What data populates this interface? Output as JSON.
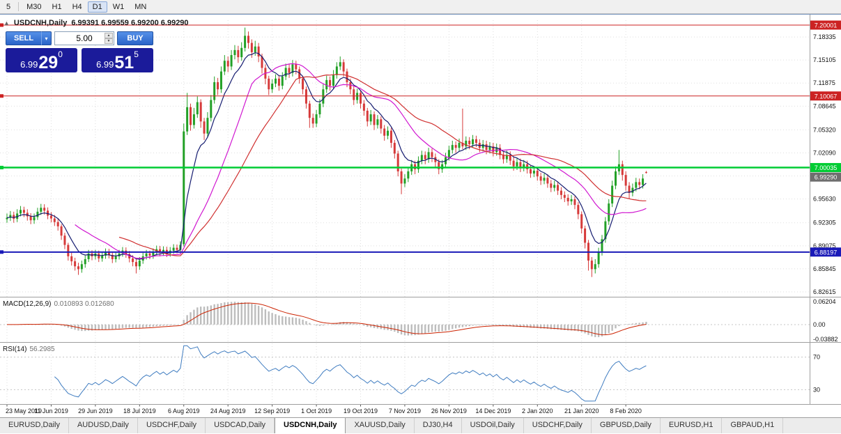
{
  "toolbar": {
    "timeframes": [
      "5",
      "M30",
      "H1",
      "H4",
      "D1",
      "W1",
      "MN"
    ],
    "active": "D1"
  },
  "chart_header": {
    "symbol": "USDCNH,Daily",
    "ohlc": "6.99391 6.99559 6.99200 6.99290"
  },
  "trade_panel": {
    "sell_label": "SELL",
    "buy_label": "BUY",
    "volume": "5.00",
    "sell_price": {
      "small": "6.99",
      "big": "29",
      "sup": "0"
    },
    "buy_price": {
      "small": "6.99",
      "big": "51",
      "sup": "5"
    }
  },
  "price_axis": {
    "labels": [
      "7.18335",
      "7.15105",
      "7.11875",
      "7.08645",
      "7.05320",
      "7.02090",
      "6.98860",
      "6.95630",
      "6.92305",
      "6.89075",
      "6.85845",
      "6.82615"
    ]
  },
  "hlines": [
    {
      "value": 7.20001,
      "label": "7.20001",
      "color": "#cc2222",
      "width": 1
    },
    {
      "value": 7.10067,
      "label": "7.10067",
      "color": "#cc2222",
      "width": 1
    },
    {
      "value": 7.00035,
      "label": "7.00035",
      "color": "#00cc33",
      "width": 2.5
    },
    {
      "value": 6.88197,
      "label": "6.88197",
      "color": "#1a1ab8",
      "width": 2
    }
  ],
  "current_price": {
    "value": 6.9929,
    "label": "6.99290",
    "color": "#6e6e6e"
  },
  "indicators": {
    "macd": {
      "title": "MACD(12,26,9)",
      "values": "0.010893 0.012680",
      "axis": [
        "0.06204",
        "0.00",
        "-0.03882"
      ],
      "histogram_color": "#bdbdbd",
      "signal_color": "#cc2200"
    },
    "rsi": {
      "title": "RSI(14)",
      "value": "56.2985",
      "levels": [
        70,
        30
      ],
      "color": "#3f7cc0"
    }
  },
  "date_axis": {
    "labels": [
      "23 May 2019",
      "11 Jun 2019",
      "29 Jun 2019",
      "18 Jul 2019",
      "6 Aug 2019",
      "24 Aug 2019",
      "12 Sep 2019",
      "1 Oct 2019",
      "19 Oct 2019",
      "7 Nov 2019",
      "26 Nov 2019",
      "14 Dec 2019",
      "2 Jan 2020",
      "21 Jan 2020",
      "8 Feb 2020"
    ]
  },
  "tabs": {
    "active": "USDCNH,Daily",
    "items": [
      "EURUSD,Daily",
      "AUDUSD,Daily",
      "USDCHF,Daily",
      "USDCAD,Daily",
      "USDCNH,Daily",
      "XAUUSD,Daily",
      "DJ30,H4",
      "USDOil,Daily",
      "USDCHF,Daily",
      "GBPUSD,Daily",
      "EURUSD,H1",
      "GBPAUD,H1"
    ]
  },
  "chart_data": {
    "type": "candlestick",
    "symbol": "USDCNH",
    "timeframe": "Daily",
    "ylim": [
      6.82615,
      7.20001
    ],
    "bull_color": "#22a026",
    "bear_color": "#d63a3a",
    "tick_candle_indices": [
      0,
      13,
      26,
      39,
      52,
      65,
      78,
      91,
      104,
      117,
      130,
      143,
      156,
      169,
      182
    ],
    "moving_averages": [
      {
        "period": 8,
        "method": "ema",
        "color": "#151c70"
      },
      {
        "period": 21,
        "method": "sma",
        "color": "#d016d0"
      },
      {
        "period": 34,
        "method": "sma",
        "color": "#d03030"
      }
    ],
    "macd_params": {
      "fast": 12,
      "slow": 26,
      "signal": 9
    },
    "rsi_period": 14,
    "candles": [
      [
        6.928,
        6.936,
        6.923,
        6.93
      ],
      [
        6.93,
        6.9395,
        6.9255,
        6.934
      ],
      [
        6.934,
        6.9385,
        6.923,
        6.9285
      ],
      [
        6.9285,
        6.942,
        6.924,
        6.936
      ],
      [
        6.936,
        6.9465,
        6.932,
        6.941
      ],
      [
        6.941,
        6.9455,
        6.931,
        6.937
      ],
      [
        6.937,
        6.942,
        6.926,
        6.932
      ],
      [
        6.932,
        6.9365,
        6.921,
        6.9265
      ],
      [
        6.9265,
        6.936,
        6.9215,
        6.931
      ],
      [
        6.931,
        6.944,
        6.927,
        6.9385
      ],
      [
        6.9385,
        6.9495,
        6.934,
        6.944
      ],
      [
        6.944,
        6.949,
        6.9345,
        6.94
      ],
      [
        6.94,
        6.9445,
        6.928,
        6.933
      ],
      [
        6.933,
        6.938,
        6.9235,
        6.929
      ],
      [
        6.929,
        6.934,
        6.9185,
        6.924
      ],
      [
        6.924,
        6.929,
        6.912,
        6.918
      ],
      [
        6.918,
        6.921,
        6.899,
        6.905
      ],
      [
        6.905,
        6.909,
        6.886,
        6.892
      ],
      [
        6.892,
        6.895,
        6.87,
        6.876
      ],
      [
        6.876,
        6.881,
        6.863,
        6.869
      ],
      [
        6.869,
        6.874,
        6.856,
        6.862
      ],
      [
        6.862,
        6.867,
        6.85,
        6.858
      ],
      [
        6.858,
        6.87,
        6.853,
        6.865
      ],
      [
        6.865,
        6.877,
        6.86,
        6.872
      ],
      [
        6.872,
        6.885,
        6.868,
        6.88
      ],
      [
        6.88,
        6.8845,
        6.8705,
        6.876
      ],
      [
        6.876,
        6.885,
        6.8715,
        6.88
      ],
      [
        6.88,
        6.884,
        6.868,
        6.873
      ],
      [
        6.873,
        6.882,
        6.8685,
        6.877
      ],
      [
        6.877,
        6.887,
        6.8725,
        6.882
      ],
      [
        6.882,
        6.8865,
        6.873,
        6.878
      ],
      [
        6.878,
        6.8825,
        6.8665,
        6.872
      ],
      [
        6.872,
        6.881,
        6.8675,
        6.876
      ],
      [
        6.876,
        6.885,
        6.8715,
        6.88
      ],
      [
        6.88,
        6.889,
        6.8755,
        6.884
      ],
      [
        6.884,
        6.8885,
        6.874,
        6.879
      ],
      [
        6.879,
        6.8835,
        6.8675,
        6.873
      ],
      [
        6.873,
        6.8775,
        6.862,
        6.868
      ],
      [
        6.868,
        6.872,
        6.852,
        6.862
      ],
      [
        6.862,
        6.875,
        6.857,
        6.87
      ],
      [
        6.87,
        6.881,
        6.8655,
        6.876
      ],
      [
        6.876,
        6.885,
        6.8715,
        6.88
      ],
      [
        6.88,
        6.884,
        6.872,
        6.877
      ],
      [
        6.877,
        6.887,
        6.8725,
        6.882
      ],
      [
        6.882,
        6.891,
        6.8775,
        6.886
      ],
      [
        6.886,
        6.8905,
        6.876,
        6.881
      ],
      [
        6.881,
        6.89,
        6.8765,
        6.885
      ],
      [
        6.885,
        6.8895,
        6.875,
        6.88
      ],
      [
        6.88,
        6.889,
        6.8755,
        6.884
      ],
      [
        6.884,
        6.893,
        6.8795,
        6.888
      ],
      [
        6.888,
        6.8925,
        6.88,
        6.885
      ],
      [
        6.885,
        6.897,
        6.8805,
        6.892
      ],
      [
        6.893,
        7.062,
        6.89,
        7.051
      ],
      [
        7.051,
        7.105,
        7.046,
        7.085
      ],
      [
        7.085,
        7.09,
        7.052,
        7.06
      ],
      [
        7.06,
        7.084,
        7.055,
        7.075
      ],
      [
        7.075,
        7.1,
        7.07,
        7.092
      ],
      [
        7.092,
        7.096,
        7.056,
        7.065
      ],
      [
        7.065,
        7.07,
        7.039,
        7.048
      ],
      [
        7.048,
        7.078,
        7.043,
        7.07
      ],
      [
        7.07,
        7.102,
        7.065,
        7.095
      ],
      [
        7.095,
        7.128,
        7.09,
        7.12
      ],
      [
        7.12,
        7.126,
        7.102,
        7.11
      ],
      [
        7.11,
        7.142,
        7.105,
        7.135
      ],
      [
        7.135,
        7.158,
        7.13,
        7.15
      ],
      [
        7.15,
        7.156,
        7.134,
        7.142
      ],
      [
        7.142,
        7.165,
        7.137,
        7.158
      ],
      [
        7.158,
        7.172,
        7.152,
        7.165
      ],
      [
        7.165,
        7.171,
        7.147,
        7.155
      ],
      [
        7.155,
        7.176,
        7.15,
        7.168
      ],
      [
        7.168,
        7.1965,
        7.163,
        7.185
      ],
      [
        7.185,
        7.191,
        7.167,
        7.175
      ],
      [
        7.175,
        7.18,
        7.154,
        7.162
      ],
      [
        7.162,
        7.178,
        7.157,
        7.17
      ],
      [
        7.17,
        7.175,
        7.148,
        7.156
      ],
      [
        7.156,
        7.16,
        7.132,
        7.14
      ],
      [
        7.14,
        7.145,
        7.117,
        7.125
      ],
      [
        7.125,
        7.129,
        7.102,
        7.11
      ],
      [
        7.11,
        7.124,
        7.105,
        7.118
      ],
      [
        7.118,
        7.131,
        7.113,
        7.125
      ],
      [
        7.125,
        7.13,
        7.108,
        7.115
      ],
      [
        7.115,
        7.134,
        7.11,
        7.128
      ],
      [
        7.128,
        7.146,
        7.123,
        7.14
      ],
      [
        7.14,
        7.145,
        7.126,
        7.133
      ],
      [
        7.133,
        7.151,
        7.128,
        7.145
      ],
      [
        7.145,
        7.15,
        7.131,
        7.138
      ],
      [
        7.138,
        7.142,
        7.118,
        7.125
      ],
      [
        7.125,
        7.129,
        7.103,
        7.11
      ],
      [
        7.11,
        7.114,
        7.083,
        7.09
      ],
      [
        7.09,
        7.094,
        7.056,
        7.07
      ],
      [
        7.07,
        7.076,
        7.056,
        7.062
      ],
      [
        7.062,
        7.081,
        7.057,
        7.075
      ],
      [
        7.075,
        7.096,
        7.07,
        7.09
      ],
      [
        7.09,
        7.117,
        7.085,
        7.11
      ],
      [
        7.11,
        7.129,
        7.105,
        7.123
      ],
      [
        7.123,
        7.128,
        7.108,
        7.115
      ],
      [
        7.115,
        7.137,
        7.11,
        7.13
      ],
      [
        7.13,
        7.148,
        7.125,
        7.142
      ],
      [
        7.142,
        7.156,
        7.137,
        7.148
      ],
      [
        7.148,
        7.152,
        7.128,
        7.135
      ],
      [
        7.135,
        7.139,
        7.113,
        7.12
      ],
      [
        7.12,
        7.125,
        7.103,
        7.11
      ],
      [
        7.11,
        7.114,
        7.088,
        7.095
      ],
      [
        7.095,
        7.111,
        7.09,
        7.105
      ],
      [
        7.105,
        7.109,
        7.083,
        7.09
      ],
      [
        7.09,
        7.095,
        7.073,
        7.08
      ],
      [
        7.08,
        7.084,
        7.058,
        7.065
      ],
      [
        7.065,
        7.081,
        7.06,
        7.075
      ],
      [
        7.075,
        7.079,
        7.053,
        7.06
      ],
      [
        7.06,
        7.074,
        7.055,
        7.068
      ],
      [
        7.068,
        7.072,
        7.048,
        7.055
      ],
      [
        7.055,
        7.06,
        7.038,
        7.045
      ],
      [
        7.045,
        7.058,
        7.04,
        7.052
      ],
      [
        7.052,
        7.056,
        7.028,
        7.035
      ],
      [
        7.035,
        7.039,
        7.013,
        7.02
      ],
      [
        7.02,
        7.024,
        6.988,
        6.995
      ],
      [
        6.995,
        6.999,
        6.963,
        6.978
      ],
      [
        6.978,
        6.991,
        6.973,
        6.985
      ],
      [
        6.985,
        7.001,
        6.98,
        6.995
      ],
      [
        6.995,
        7.011,
        6.99,
        7.005
      ],
      [
        7.005,
        7.01,
        6.991,
        6.998
      ],
      [
        6.998,
        7.016,
        6.993,
        7.01
      ],
      [
        7.01,
        7.024,
        7.005,
        7.018
      ],
      [
        7.018,
        7.023,
        7.005,
        7.012
      ],
      [
        7.012,
        7.028,
        7.007,
        7.022
      ],
      [
        7.022,
        7.027,
        7.008,
        7.015
      ],
      [
        7.015,
        7.02,
        7.001,
        7.008
      ],
      [
        7.008,
        7.012,
        6.991,
        6.998
      ],
      [
        6.998,
        7.011,
        6.993,
        7.005
      ],
      [
        7.005,
        7.021,
        7.0,
        7.015
      ],
      [
        7.015,
        7.031,
        7.01,
        7.025
      ],
      [
        7.025,
        7.038,
        7.02,
        7.032
      ],
      [
        7.032,
        7.037,
        7.021,
        7.028
      ],
      [
        7.028,
        7.041,
        7.023,
        7.035
      ],
      [
        7.035,
        7.083,
        7.026,
        7.03
      ],
      [
        7.03,
        7.044,
        7.025,
        7.038
      ],
      [
        7.038,
        7.043,
        7.026,
        7.033
      ],
      [
        7.033,
        7.046,
        7.028,
        7.04
      ],
      [
        7.04,
        7.045,
        7.029,
        7.035
      ],
      [
        7.035,
        7.04,
        7.022,
        7.028
      ],
      [
        7.028,
        7.039,
        7.023,
        7.033
      ],
      [
        7.033,
        7.038,
        7.019,
        7.025
      ],
      [
        7.025,
        7.036,
        7.02,
        7.03
      ],
      [
        7.03,
        7.035,
        7.016,
        7.022
      ],
      [
        7.022,
        7.034,
        7.017,
        7.028
      ],
      [
        7.028,
        7.033,
        7.012,
        7.018
      ],
      [
        7.018,
        7.023,
        7.006,
        7.012
      ],
      [
        7.012,
        7.024,
        7.007,
        7.018
      ],
      [
        7.018,
        7.023,
        7.004,
        7.01
      ],
      [
        7.01,
        7.015,
        6.996,
        7.002
      ],
      [
        7.002,
        7.014,
        6.997,
        7.008
      ],
      [
        7.008,
        7.013,
        6.994,
        7.0
      ],
      [
        7.0,
        7.011,
        6.995,
        7.005
      ],
      [
        7.005,
        7.01,
        6.992,
        6.998
      ],
      [
        6.998,
        7.003,
        6.986,
        6.992
      ],
      [
        6.992,
        7.002,
        6.987,
        6.996
      ],
      [
        6.996,
        7.001,
        6.982,
        6.988
      ],
      [
        6.988,
        6.993,
        6.976,
        6.982
      ],
      [
        6.982,
        6.992,
        6.977,
        6.986
      ],
      [
        6.986,
        6.991,
        6.972,
        6.978
      ],
      [
        6.978,
        6.983,
        6.966,
        6.972
      ],
      [
        6.972,
        6.982,
        6.967,
        6.976
      ],
      [
        6.976,
        6.981,
        6.962,
        6.968
      ],
      [
        6.968,
        6.973,
        6.956,
        6.962
      ],
      [
        6.962,
        6.967,
        6.952,
        6.958
      ],
      [
        6.958,
        6.963,
        6.947,
        6.953
      ],
      [
        6.953,
        6.962,
        6.948,
        6.956
      ],
      [
        6.956,
        6.96,
        6.942,
        6.948
      ],
      [
        6.948,
        6.952,
        6.928,
        6.935
      ],
      [
        6.935,
        6.939,
        6.908,
        6.915
      ],
      [
        6.915,
        6.919,
        6.887,
        6.895
      ],
      [
        6.895,
        6.899,
        6.856,
        6.87
      ],
      [
        6.87,
        6.875,
        6.847,
        6.858
      ],
      [
        6.858,
        6.872,
        6.852,
        6.865
      ],
      [
        6.865,
        6.888,
        6.86,
        6.882
      ],
      [
        6.882,
        6.906,
        6.877,
        6.9
      ],
      [
        6.9,
        6.931,
        6.895,
        6.925
      ],
      [
        6.925,
        6.956,
        6.92,
        6.95
      ],
      [
        6.95,
        6.982,
        6.945,
        6.975
      ],
      [
        6.975,
        7.002,
        6.97,
        6.995
      ],
      [
        6.995,
        7.025,
        6.99,
        7.005
      ],
      [
        7.005,
        7.01,
        6.982,
        6.99
      ],
      [
        6.99,
        6.995,
        6.968,
        6.975
      ],
      [
        6.975,
        6.98,
        6.956,
        6.965
      ],
      [
        6.965,
        6.978,
        6.96,
        6.972
      ],
      [
        6.972,
        6.986,
        6.967,
        6.98
      ],
      [
        6.98,
        6.985,
        6.97,
        6.976
      ],
      [
        6.976,
        6.991,
        6.971,
        6.985
      ],
      [
        6.99391,
        6.99559,
        6.992,
        6.9929
      ]
    ]
  }
}
